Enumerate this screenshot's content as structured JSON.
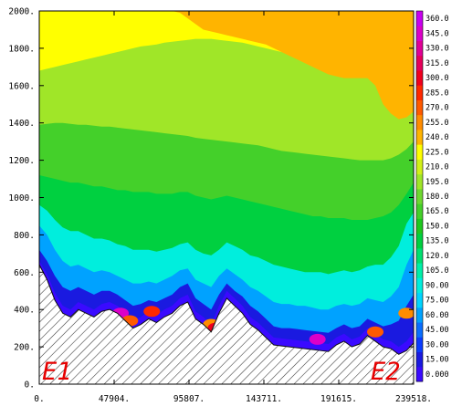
{
  "chart_data": {
    "type": "heatmap",
    "title": "",
    "xlabel": "",
    "ylabel": "",
    "xlim": [
      0,
      239518
    ],
    "ylim": [
      0,
      2000
    ],
    "x_ticks": [
      "0.",
      "47904.",
      "95807.",
      "143711.",
      "191615.",
      "239518."
    ],
    "y_ticks": [
      "0.",
      "200.",
      "400.",
      "600.",
      "800.",
      "1000.",
      "1200.",
      "1400.",
      "1600.",
      "1800.",
      "2000."
    ],
    "colorbar": {
      "levels": [
        "0.000",
        "15.00",
        "30.00",
        "45.00",
        "60.00",
        "75.00",
        "90.00",
        "105.0",
        "120.0",
        "135.0",
        "150.0",
        "165.0",
        "180.0",
        "195.0",
        "210.0",
        "225.0",
        "240.0",
        "255.0",
        "270.0",
        "285.0",
        "300.0",
        "315.0",
        "330.0",
        "345.0",
        "360.0"
      ],
      "colors": [
        "#3a0aff",
        "#1a1ae0",
        "#0a3cff",
        "#0a6eff",
        "#00a2ff",
        "#00d4ff",
        "#00eedd",
        "#00f0a8",
        "#00e070",
        "#00d040",
        "#1ec81e",
        "#44d02a",
        "#6ed830",
        "#a0e628",
        "#d2f018",
        "#ffff00",
        "#ffb400",
        "#ff8c00",
        "#ff5a00",
        "#ff2800",
        "#f0001e",
        "#e6005a",
        "#e00096",
        "#dc00c8",
        "#c800f0"
      ]
    },
    "annotations": [
      {
        "text": "E1",
        "position": "bottom-left",
        "color": "#e60000"
      },
      {
        "text": "E2",
        "position": "bottom-right",
        "color": "#e60000"
      }
    ],
    "terrain_profile": {
      "x": [
        0,
        5000,
        10000,
        15000,
        20000,
        25000,
        30000,
        35000,
        40000,
        45000,
        50000,
        55000,
        60000,
        65000,
        70000,
        75000,
        80000,
        85000,
        90000,
        95000,
        100000,
        105000,
        110000,
        115000,
        120000,
        125000,
        130000,
        135000,
        140000,
        145000,
        150000,
        155000,
        160000,
        165000,
        170000,
        175000,
        180000,
        185000,
        190000,
        195000,
        200000,
        205000,
        210000,
        215000,
        220000,
        225000,
        230000,
        235000,
        239518
      ],
      "y": [
        640,
        560,
        450,
        380,
        360,
        400,
        380,
        360,
        390,
        400,
        380,
        340,
        300,
        320,
        350,
        330,
        360,
        380,
        420,
        440,
        350,
        320,
        280,
        380,
        460,
        420,
        380,
        320,
        290,
        250,
        210,
        205,
        200,
        195,
        190,
        185,
        180,
        175,
        210,
        230,
        200,
        215,
        260,
        230,
        200,
        190,
        160,
        180,
        220
      ]
    },
    "contour_bands": [
      {
        "level": 30,
        "color": "#1a1ae0",
        "top": [
          660,
          590,
          490,
          420,
          400,
          440,
          420,
          400,
          430,
          440,
          420,
          380,
          340,
          360,
          390,
          370,
          400,
          420,
          460,
          480,
          390,
          360,
          320,
          420,
          500,
          460,
          420,
          360,
          330,
          290,
          250,
          245,
          240,
          235,
          230,
          225,
          220,
          215,
          250,
          270,
          240,
          255,
          300,
          270,
          240,
          230,
          200,
          230,
          280
        ]
      },
      {
        "level": 75,
        "color": "#00a2ff",
        "top": [
          720,
          660,
          580,
          520,
          500,
          520,
          500,
          480,
          500,
          500,
          480,
          450,
          420,
          430,
          450,
          440,
          460,
          480,
          520,
          540,
          460,
          430,
          400,
          480,
          540,
          500,
          470,
          420,
          390,
          350,
          310,
          300,
          300,
          295,
          290,
          285,
          280,
          275,
          300,
          320,
          300,
          310,
          350,
          330,
          310,
          320,
          340,
          420,
          480
        ]
      },
      {
        "level": 105,
        "color": "#00eedd",
        "top": [
          850,
          800,
          720,
          660,
          630,
          640,
          620,
          600,
          610,
          600,
          580,
          560,
          540,
          540,
          550,
          540,
          560,
          580,
          610,
          620,
          560,
          540,
          520,
          580,
          620,
          590,
          560,
          520,
          500,
          470,
          440,
          430,
          430,
          420,
          420,
          410,
          400,
          400,
          420,
          430,
          420,
          430,
          460,
          450,
          440,
          470,
          520,
          640,
          720
        ]
      },
      {
        "level": 135,
        "color": "#00d040",
        "top": [
          960,
          930,
          880,
          840,
          820,
          820,
          800,
          780,
          780,
          770,
          750,
          740,
          720,
          720,
          720,
          710,
          720,
          730,
          750,
          760,
          720,
          700,
          690,
          720,
          760,
          740,
          720,
          690,
          680,
          660,
          640,
          630,
          620,
          610,
          600,
          600,
          600,
          590,
          600,
          610,
          600,
          610,
          630,
          640,
          640,
          680,
          740,
          860,
          920
        ]
      },
      {
        "level": 165,
        "color": "#44d02a",
        "top": [
          1120,
          1110,
          1100,
          1090,
          1080,
          1080,
          1070,
          1060,
          1060,
          1050,
          1040,
          1040,
          1030,
          1030,
          1030,
          1020,
          1020,
          1020,
          1030,
          1030,
          1010,
          1000,
          990,
          1000,
          1010,
          1000,
          990,
          980,
          970,
          960,
          950,
          940,
          930,
          920,
          910,
          900,
          900,
          890,
          890,
          890,
          880,
          880,
          880,
          890,
          900,
          920,
          960,
          1020,
          1080
        ]
      },
      {
        "level": 195,
        "color": "#a0e628",
        "top": [
          1390,
          1395,
          1400,
          1400,
          1395,
          1390,
          1390,
          1385,
          1380,
          1380,
          1375,
          1370,
          1365,
          1360,
          1355,
          1350,
          1345,
          1340,
          1335,
          1330,
          1320,
          1315,
          1310,
          1305,
          1300,
          1295,
          1290,
          1285,
          1280,
          1270,
          1260,
          1250,
          1245,
          1240,
          1235,
          1230,
          1225,
          1220,
          1215,
          1210,
          1205,
          1200,
          1200,
          1200,
          1200,
          1210,
          1230,
          1260,
          1300
        ]
      },
      {
        "level": 225,
        "color": "#ffff00",
        "top": [
          1680,
          1690,
          1700,
          1710,
          1720,
          1730,
          1740,
          1750,
          1760,
          1770,
          1780,
          1790,
          1800,
          1810,
          1815,
          1820,
          1830,
          1835,
          1840,
          1845,
          1850,
          1850,
          1850,
          1845,
          1840,
          1835,
          1830,
          1820,
          1810,
          1800,
          1790,
          1780,
          1770,
          1760,
          1750,
          1740,
          1730,
          1720,
          1710,
          1700,
          1690,
          1680,
          1670,
          1660,
          1650,
          1640,
          1630,
          1620,
          1610
        ]
      },
      {
        "level": 240,
        "color": "#ffb400",
        "top": [
          2000,
          2000,
          2000,
          2000,
          2000,
          2000,
          2000,
          2000,
          2000,
          2000,
          2000,
          2000,
          2000,
          2000,
          2000,
          2000,
          2000,
          2000,
          2000,
          2000,
          2000,
          2000,
          2000,
          2000,
          2000,
          2000,
          2000,
          2000,
          2000,
          2000,
          2000,
          2000,
          2000,
          2000,
          2000,
          2000,
          2000,
          2000,
          2000,
          2000,
          2000,
          2000,
          2000,
          2000,
          2000,
          2000,
          2000,
          2000,
          2000
        ],
        "bottom": [
          2000,
          2000,
          2000,
          2000,
          2000,
          2000,
          2000,
          2000,
          2000,
          2000,
          2000,
          2000,
          2000,
          2000,
          2000,
          2000,
          2000,
          2000,
          1990,
          1960,
          1930,
          1900,
          1890,
          1880,
          1870,
          1860,
          1850,
          1840,
          1830,
          1820,
          1800,
          1780,
          1760,
          1740,
          1720,
          1700,
          1680,
          1660,
          1650,
          1640,
          1640,
          1640,
          1640,
          1600,
          1500,
          1450,
          1420,
          1430,
          1460
        ]
      }
    ],
    "hotspots": [
      {
        "x": 52000,
        "y": 380,
        "color": "#dc00c8"
      },
      {
        "x": 58000,
        "y": 340,
        "color": "#ff5a00"
      },
      {
        "x": 72000,
        "y": 390,
        "color": "#ff2800"
      },
      {
        "x": 110000,
        "y": 320,
        "color": "#ff8c00"
      },
      {
        "x": 113000,
        "y": 300,
        "color": "#f0001e"
      },
      {
        "x": 178000,
        "y": 240,
        "color": "#dc00c8"
      },
      {
        "x": 215000,
        "y": 280,
        "color": "#ff5a00"
      },
      {
        "x": 235000,
        "y": 380,
        "color": "#ff8c00"
      }
    ]
  }
}
